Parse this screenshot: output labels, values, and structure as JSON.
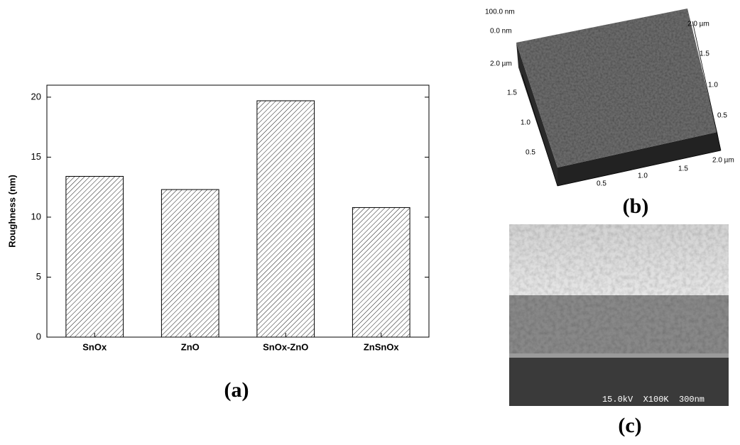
{
  "chart_data": {
    "type": "bar",
    "y_label": "Roughness (nm)",
    "categories": [
      "SnOx",
      "ZnO",
      "SnOx-ZnO",
      "ZnSnOx"
    ],
    "values": [
      13.4,
      12.3,
      19.7,
      10.8
    ],
    "color": "#000000",
    "hatch": true,
    "ylim": [
      0,
      21
    ],
    "yticks": [
      0,
      5,
      10,
      15,
      20
    ]
  },
  "figure": {
    "panel_labels": [
      "(a)",
      "(b)",
      "(c)"
    ],
    "afm": {
      "z_labels": [
        "100.0 nm",
        "0.0 nm"
      ],
      "left_axis": [
        "2.0 µm",
        "1.5",
        "1.0",
        "0.5"
      ],
      "bottom_axis": [
        "0.5",
        "1.0",
        "1.5",
        "2.0 µm"
      ],
      "right_axis": [
        "2.0 µm",
        "1.5",
        "1.0",
        "0.5"
      ]
    },
    "sem": {
      "info": "15.0kV  X100K  300nm"
    }
  }
}
